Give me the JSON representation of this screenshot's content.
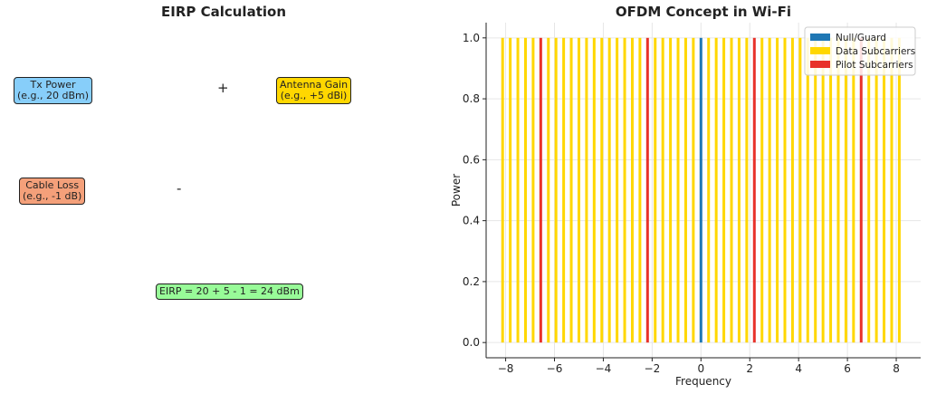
{
  "eirp": {
    "title": "EIRP Calculation",
    "tx_power": {
      "line1": "Tx Power",
      "line2": "(e.g., 20 dBm)",
      "color": "#87cefa"
    },
    "antenna_gain": {
      "line1": "Antenna Gain",
      "line2": "(e.g., +5 dBi)",
      "color": "#ffd700"
    },
    "cable_loss": {
      "line1": "Cable Loss",
      "line2": "(e.g., -1 dB)",
      "color": "#f4a07a"
    },
    "plus_sign": "+",
    "minus_sign": "-",
    "result": {
      "text": "EIRP = 20 + 5 - 1 = 24 dBm",
      "color": "#98fb98"
    }
  },
  "chart_data": {
    "type": "bar",
    "title": "OFDM Concept in Wi-Fi",
    "xlabel": "Frequency",
    "ylabel": "Power",
    "xlim": [
      -8.8,
      9.0
    ],
    "ylim": [
      -0.05,
      1.05
    ],
    "xticks": [
      -8,
      -6,
      -4,
      -2,
      0,
      2,
      4,
      6,
      8
    ],
    "yticks": [
      0.0,
      0.2,
      0.4,
      0.6,
      0.8,
      1.0
    ],
    "grid": true,
    "legend_position": "top-right",
    "series": [
      {
        "name": "Null/Guard",
        "color": "#1f77b4",
        "x": [
          0
        ],
        "values": [
          1.0
        ]
      },
      {
        "name": "Data Subcarriers",
        "color": "#ffd700",
        "x": [
          -8.125,
          -7.8125,
          -7.5,
          -7.1875,
          -6.875,
          -6.25,
          -5.9375,
          -5.625,
          -5.3125,
          -5.0,
          -4.6875,
          -4.375,
          -4.0625,
          -3.75,
          -3.4375,
          -3.125,
          -2.8125,
          -2.5,
          -1.875,
          -1.5625,
          -1.25,
          -0.9375,
          -0.625,
          -0.3125,
          0.3125,
          0.625,
          0.9375,
          1.25,
          1.5625,
          1.875,
          2.5,
          2.8125,
          3.125,
          3.4375,
          3.75,
          4.0625,
          4.375,
          4.6875,
          5.0,
          5.3125,
          5.625,
          5.9375,
          6.25,
          6.875,
          7.1875,
          7.5,
          7.8125,
          8.125
        ],
        "values": [
          1,
          1,
          1,
          1,
          1,
          1,
          1,
          1,
          1,
          1,
          1,
          1,
          1,
          1,
          1,
          1,
          1,
          1,
          1,
          1,
          1,
          1,
          1,
          1,
          1,
          1,
          1,
          1,
          1,
          1,
          1,
          1,
          1,
          1,
          1,
          1,
          1,
          1,
          1,
          1,
          1,
          1,
          1,
          1,
          1,
          1,
          1,
          1
        ]
      },
      {
        "name": "Pilot Subcarriers",
        "color": "#e8322a",
        "x": [
          -6.5625,
          -2.1875,
          2.1875,
          6.5625
        ],
        "values": [
          1,
          1,
          1,
          1
        ]
      }
    ]
  }
}
